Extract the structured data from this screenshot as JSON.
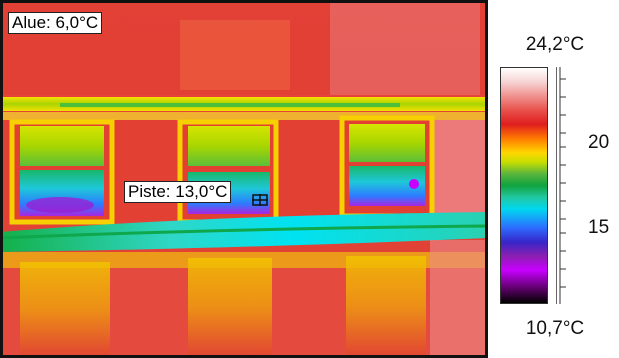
{
  "measurements": {
    "area_label": "Alue: 6,0°C",
    "spot_label": "Piste: 13,0°C"
  },
  "scale": {
    "max_label": "24,2°C",
    "min_label": "10,7°C",
    "tick_labels": [
      "20",
      "15"
    ],
    "max_value": 24.2,
    "min_value": 10.7,
    "ticks": [
      20,
      15
    ]
  },
  "palette": {
    "hot": "#e44a3e",
    "warm": "#ffd600",
    "mid": "#10a33f",
    "cool": "#00d8f0",
    "cold": "#3626c9",
    "coldest": "#c800ff"
  }
}
